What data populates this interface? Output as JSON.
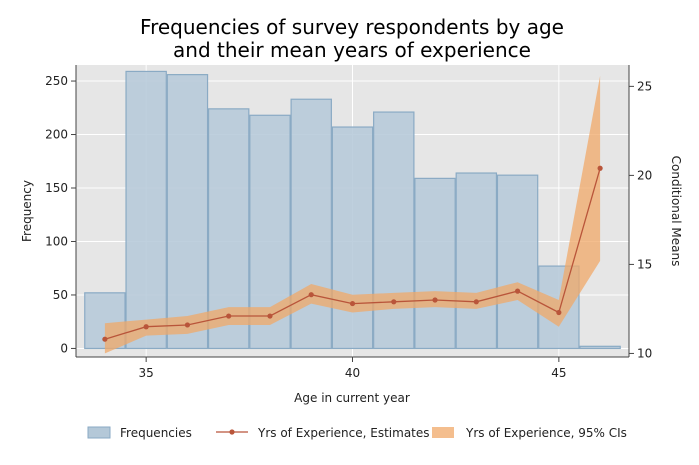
{
  "chart_data": {
    "type": "bar",
    "title": [
      "Frequencies of survey respondents by age",
      "and their mean years of experience"
    ],
    "xlabel": "Age in current year",
    "ylabel_left": "Frequency",
    "ylabel_right": "Conditional Means",
    "x_ticks": [
      35,
      40,
      45
    ],
    "y_left_ticks": [
      0,
      50,
      100,
      150,
      200,
      250
    ],
    "y_right_ticks": [
      10,
      15,
      20,
      25
    ],
    "xlim": [
      33.3,
      46.7
    ],
    "ylim_left": [
      -8,
      265
    ],
    "ylim_right": [
      9.8,
      26.2
    ],
    "grid": true,
    "legend_position": "bottom",
    "colors": {
      "plot_bg": "#e6e6e6",
      "bar_fill": "#b4c8d8",
      "bar_stroke": "#8aaac4",
      "line": "#b9553a",
      "ci_fill": "#f0a868"
    },
    "histogram": {
      "name": "Frequencies",
      "ages": [
        34,
        35,
        36,
        37,
        38,
        39,
        40,
        41,
        42,
        43,
        44,
        45,
        46
      ],
      "counts": [
        52,
        259,
        256,
        224,
        218,
        233,
        207,
        221,
        159,
        164,
        162,
        77,
        2
      ]
    },
    "estimates": {
      "name": "Yrs of Experience, Estimates",
      "ages": [
        34,
        35,
        36,
        37,
        38,
        39,
        40,
        41,
        42,
        43,
        44,
        45,
        46
      ],
      "values": [
        10.8,
        11.5,
        11.6,
        12.1,
        12.1,
        13.3,
        12.8,
        12.9,
        13.0,
        12.9,
        13.5,
        12.3,
        20.4
      ]
    },
    "ci": {
      "name": "Yrs of Experience, 95% CIs",
      "ages": [
        34,
        35,
        36,
        37,
        38,
        39,
        40,
        41,
        42,
        43,
        44,
        45,
        46
      ],
      "lower": [
        10.0,
        11.0,
        11.1,
        11.6,
        11.6,
        12.8,
        12.3,
        12.5,
        12.6,
        12.5,
        13.0,
        11.5,
        15.2
      ],
      "upper": [
        11.7,
        11.9,
        12.1,
        12.6,
        12.6,
        13.9,
        13.3,
        13.4,
        13.5,
        13.4,
        14.0,
        13.0,
        25.6
      ]
    }
  }
}
